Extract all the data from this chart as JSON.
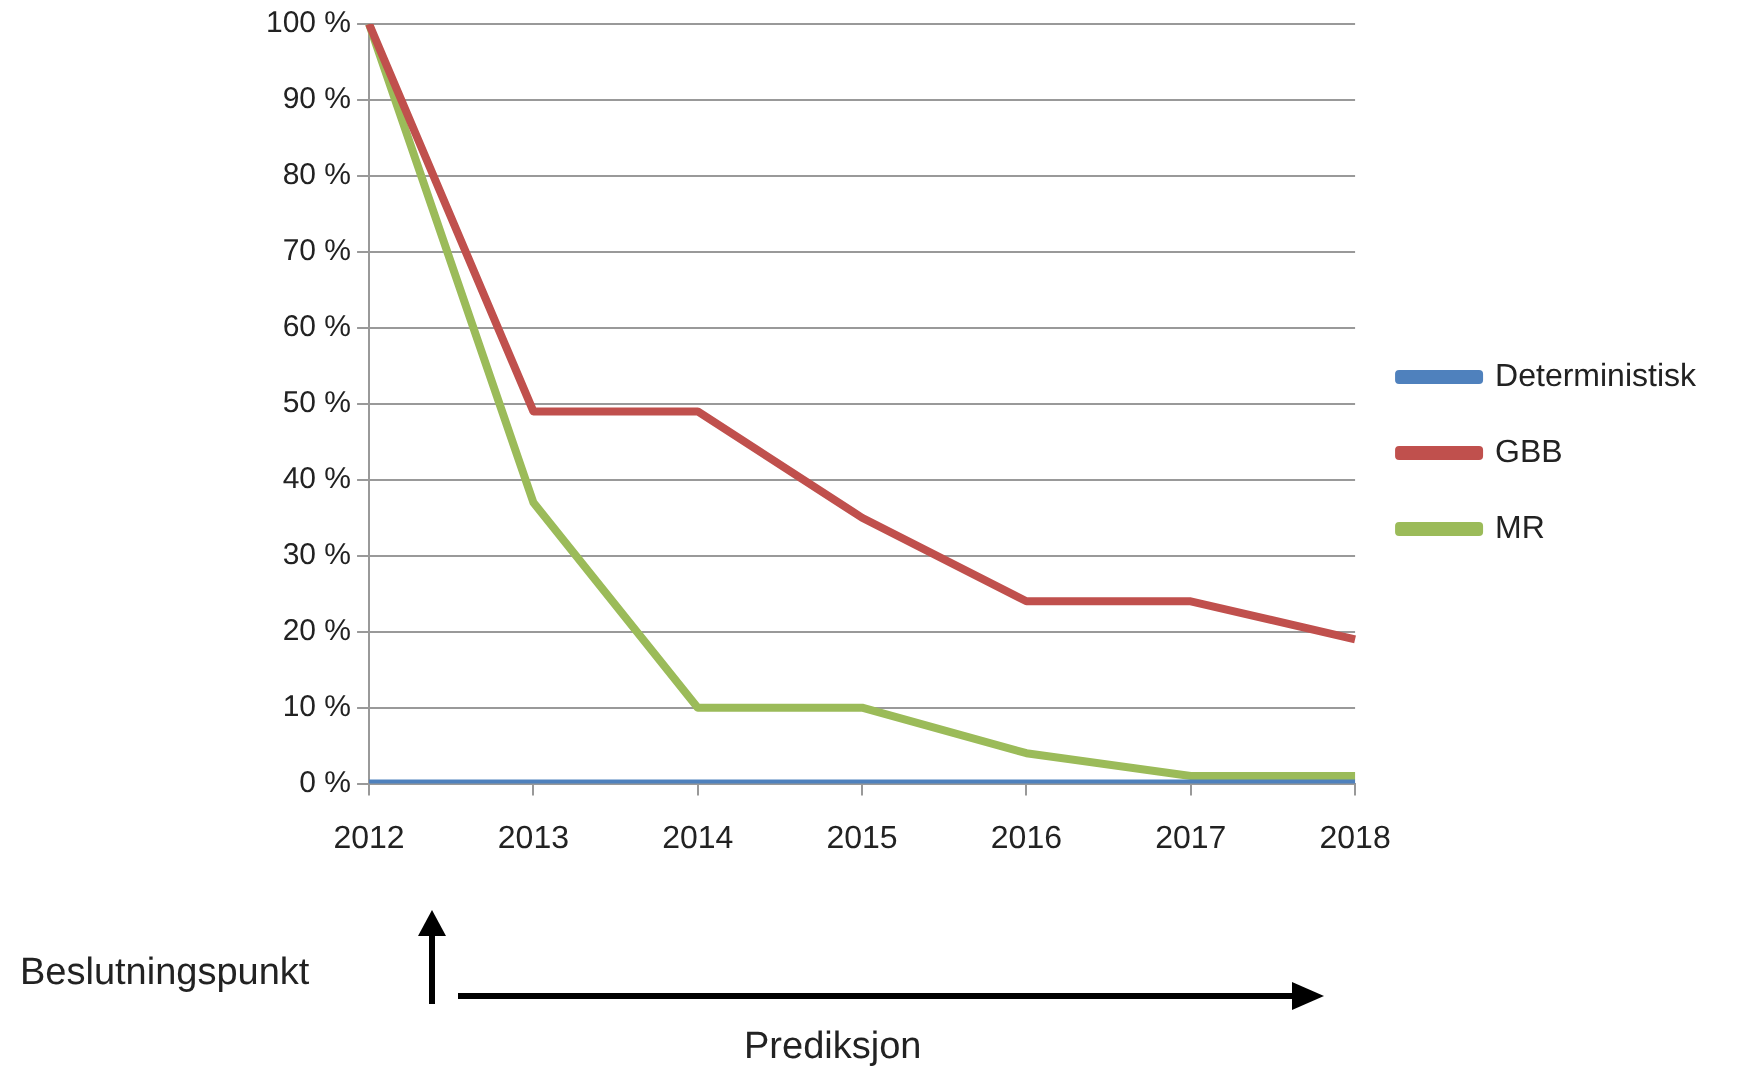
{
  "chart_data": {
    "type": "line",
    "categories": [
      "2012",
      "2013",
      "2014",
      "2015",
      "2016",
      "2017",
      "2018"
    ],
    "series": [
      {
        "name": "Deterministisk",
        "color": "#4f81bd",
        "values": [
          0,
          0,
          0,
          0,
          0,
          0,
          0
        ]
      },
      {
        "name": "GBB",
        "color": "#c0504d",
        "values": [
          100,
          49,
          49,
          35,
          24,
          24,
          19
        ]
      },
      {
        "name": "MR",
        "color": "#9bbb59",
        "values": [
          100,
          37,
          10,
          10,
          4,
          1,
          1
        ]
      }
    ],
    "ylim": [
      0,
      100
    ],
    "yticks": [
      {
        "value": 0,
        "label": "0 %"
      },
      {
        "value": 10,
        "label": "10 %"
      },
      {
        "value": 20,
        "label": "20 %"
      },
      {
        "value": 30,
        "label": "30 %"
      },
      {
        "value": 40,
        "label": "40 %"
      },
      {
        "value": 50,
        "label": "50 %"
      },
      {
        "value": 60,
        "label": "60 %"
      },
      {
        "value": 70,
        "label": "70 %"
      },
      {
        "value": 80,
        "label": "80 %"
      },
      {
        "value": 90,
        "label": "90 %"
      },
      {
        "value": 100,
        "label": "100 %"
      }
    ],
    "grid": "y",
    "legend": "right",
    "marker": "none",
    "line_style": "solid",
    "annotations": [
      "Beslutningspunkt",
      "Prediksjon"
    ]
  }
}
